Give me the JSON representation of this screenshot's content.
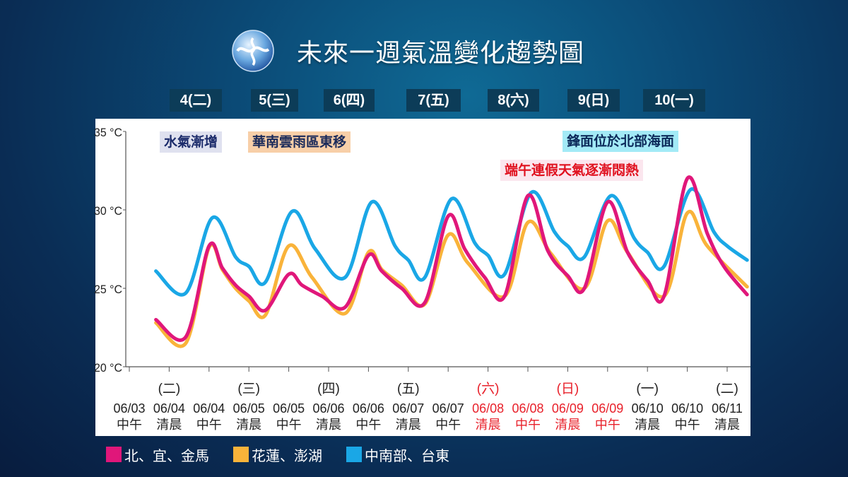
{
  "header": {
    "title": "未來一週氣溫變化趨勢圖",
    "logo_icon": "cwa-logo"
  },
  "days": [
    "4(二)",
    "5(三)",
    "6(四)",
    "7(五)",
    "8(六)",
    "9(日)",
    "10(一)"
  ],
  "annotations": {
    "a1": "水氣漸增",
    "a2": "華南雲雨區東移",
    "a3": "鋒面位於北部海面",
    "a4": "端午連假天氣逐漸悶熱"
  },
  "legend": [
    {
      "label": "北、宜、金馬",
      "color": "#e0177a"
    },
    {
      "label": "花蓮、澎湖",
      "color": "#f9b33a"
    },
    {
      "label": "中南部、台東",
      "color": "#1aa7e6"
    }
  ],
  "chart_data": {
    "type": "line",
    "title": "",
    "xlabel": "",
    "ylabel": "",
    "ylim": [
      20,
      35
    ],
    "yticks": [
      "20 °C",
      "25 °C",
      "30 °C",
      "35 °C"
    ],
    "ytick_values": [
      20,
      25,
      30,
      35
    ],
    "xlim": [
      "06/03 12:00",
      "06/11 06:00"
    ],
    "xticks": [
      {
        "date": "06/03",
        "time": "中午",
        "day": "",
        "holiday": false
      },
      {
        "date": "06/04",
        "time": "清晨",
        "day": "(二)",
        "holiday": false
      },
      {
        "date": "06/04",
        "time": "中午",
        "day": "",
        "holiday": false
      },
      {
        "date": "06/05",
        "time": "清晨",
        "day": "(三)",
        "holiday": false
      },
      {
        "date": "06/05",
        "time": "中午",
        "day": "",
        "holiday": false
      },
      {
        "date": "06/06",
        "time": "清晨",
        "day": "(四)",
        "holiday": false
      },
      {
        "date": "06/06",
        "time": "中午",
        "day": "",
        "holiday": false
      },
      {
        "date": "06/07",
        "time": "清晨",
        "day": "(五)",
        "holiday": false
      },
      {
        "date": "06/07",
        "time": "中午",
        "day": "",
        "holiday": false
      },
      {
        "date": "06/08",
        "time": "清晨",
        "day": "(六)",
        "holiday": true
      },
      {
        "date": "06/08",
        "time": "中午",
        "day": "",
        "holiday": true
      },
      {
        "date": "06/09",
        "time": "清晨",
        "day": "(日)",
        "holiday": true
      },
      {
        "date": "06/09",
        "time": "中午",
        "day": "",
        "holiday": true
      },
      {
        "date": "06/10",
        "time": "清晨",
        "day": "(一)",
        "holiday": false
      },
      {
        "date": "06/10",
        "time": "中午",
        "day": "",
        "holiday": false
      },
      {
        "date": "06/11",
        "time": "清晨",
        "day": "(二)",
        "holiday": false
      }
    ],
    "grid": false,
    "holiday_color": "#e8202a",
    "series": [
      {
        "name": "中南部、台東",
        "color": "#1aa7e6",
        "points": [
          [
            "06/03 20:00",
            26.1
          ],
          [
            "06/04 05:00",
            24.7
          ],
          [
            "06/04 13:00",
            29.5
          ],
          [
            "06/04 20:00",
            27.0
          ],
          [
            "06/05 00:00",
            26.4
          ],
          [
            "06/05 05:00",
            25.4
          ],
          [
            "06/05 13:00",
            29.9
          ],
          [
            "06/05 20:00",
            27.5
          ],
          [
            "06/06 05:00",
            25.7
          ],
          [
            "06/06 13:00",
            30.5
          ],
          [
            "06/06 20:00",
            27.7
          ],
          [
            "06/07 00:00",
            26.8
          ],
          [
            "06/07 05:00",
            25.7
          ],
          [
            "06/07 13:00",
            30.7
          ],
          [
            "06/07 20:00",
            27.9
          ],
          [
            "06/08 00:00",
            27.1
          ],
          [
            "06/08 05:00",
            25.9
          ],
          [
            "06/08 13:00",
            31.1
          ],
          [
            "06/08 20:00",
            28.6
          ],
          [
            "06/09 00:00",
            27.7
          ],
          [
            "06/09 05:00",
            27.0
          ],
          [
            "06/09 13:00",
            30.9
          ],
          [
            "06/09 20:00",
            28.2
          ],
          [
            "06/10 00:00",
            27.3
          ],
          [
            "06/10 05:00",
            26.4
          ],
          [
            "06/10 13:00",
            31.3
          ],
          [
            "06/10 20:00",
            28.6
          ],
          [
            "06/11 00:00",
            27.7
          ],
          [
            "06/11 06:00",
            26.8
          ]
        ]
      },
      {
        "name": "花蓮、澎湖",
        "color": "#f9b33a",
        "points": [
          [
            "06/03 20:00",
            22.8
          ],
          [
            "06/04 05:00",
            21.5
          ],
          [
            "06/04 12:00",
            27.6
          ],
          [
            "06/04 16:00",
            26.2
          ],
          [
            "06/04 20:00",
            25.0
          ],
          [
            "06/05 00:00",
            24.2
          ],
          [
            "06/05 05:00",
            23.3
          ],
          [
            "06/05 12:00",
            27.7
          ],
          [
            "06/05 19:00",
            25.7
          ],
          [
            "06/06 05:00",
            23.4
          ],
          [
            "06/06 12:00",
            27.3
          ],
          [
            "06/06 16:00",
            26.2
          ],
          [
            "06/06 22:00",
            25.2
          ],
          [
            "06/07 05:00",
            24.0
          ],
          [
            "06/07 12:00",
            28.4
          ],
          [
            "06/07 18:00",
            26.6
          ],
          [
            "06/08 05:00",
            24.5
          ],
          [
            "06/08 12:00",
            29.2
          ],
          [
            "06/08 19:00",
            27.2
          ],
          [
            "06/09 05:00",
            25.0
          ],
          [
            "06/09 12:00",
            29.3
          ],
          [
            "06/09 18:00",
            27.3
          ],
          [
            "06/10 05:00",
            24.5
          ],
          [
            "06/10 12:00",
            29.8
          ],
          [
            "06/10 18:00",
            27.7
          ],
          [
            "06/11 06:00",
            25.1
          ]
        ]
      },
      {
        "name": "北、宜、金馬",
        "color": "#e0177a",
        "points": [
          [
            "06/03 20:00",
            23.0
          ],
          [
            "06/04 05:00",
            21.9
          ],
          [
            "06/04 12:00",
            27.7
          ],
          [
            "06/04 16:00",
            26.3
          ],
          [
            "06/04 20:00",
            25.2
          ],
          [
            "06/05 00:00",
            24.5
          ],
          [
            "06/05 05:00",
            23.6
          ],
          [
            "06/05 12:00",
            25.9
          ],
          [
            "06/05 16:00",
            25.2
          ],
          [
            "06/05 22:00",
            24.5
          ],
          [
            "06/06 05:00",
            23.8
          ],
          [
            "06/06 12:00",
            27.1
          ],
          [
            "06/06 16:00",
            26.1
          ],
          [
            "06/06 22:00",
            25.0
          ],
          [
            "06/07 05:00",
            24.1
          ],
          [
            "06/07 12:00",
            29.6
          ],
          [
            "06/07 17:00",
            27.5
          ],
          [
            "06/07 23:00",
            25.7
          ],
          [
            "06/08 05:00",
            24.5
          ],
          [
            "06/08 12:00",
            30.9
          ],
          [
            "06/08 18:00",
            27.4
          ],
          [
            "06/09 00:00",
            25.8
          ],
          [
            "06/09 05:00",
            25.0
          ],
          [
            "06/09 12:00",
            30.5
          ],
          [
            "06/09 18:00",
            27.3
          ],
          [
            "06/10 00:00",
            25.5
          ],
          [
            "06/10 05:00",
            24.5
          ],
          [
            "06/10 12:00",
            32.0
          ],
          [
            "06/10 18:00",
            28.5
          ],
          [
            "06/10 23:00",
            26.4
          ],
          [
            "06/11 06:00",
            24.6
          ]
        ]
      }
    ]
  }
}
